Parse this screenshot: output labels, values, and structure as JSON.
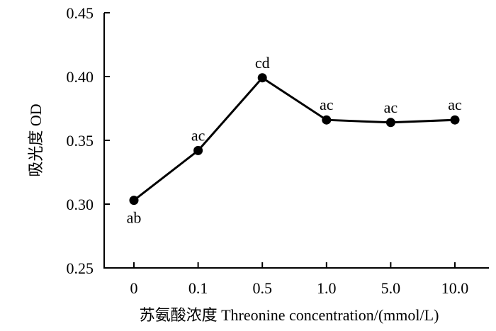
{
  "chart_data": {
    "type": "line",
    "title": "",
    "xlabel": "苏氨酸浓度 Threonine concentration/(mmol/L)",
    "ylabel": "吸光度 OD",
    "categories": [
      "0",
      "0.1",
      "0.5",
      "1.0",
      "5.0",
      "10.0"
    ],
    "y_ticks": [
      "0.25",
      "0.30",
      "0.35",
      "0.40",
      "0.45"
    ],
    "ylim": [
      0.25,
      0.45
    ],
    "grid": false,
    "series": [
      {
        "values": [
          0.303,
          0.342,
          0.399,
          0.366,
          0.364,
          0.366
        ],
        "point_labels": [
          "ab",
          "ac",
          "cd",
          "ac",
          "ac",
          "ac"
        ],
        "label_positions": [
          "below",
          "above",
          "above",
          "above",
          "above",
          "above"
        ]
      }
    ]
  }
}
